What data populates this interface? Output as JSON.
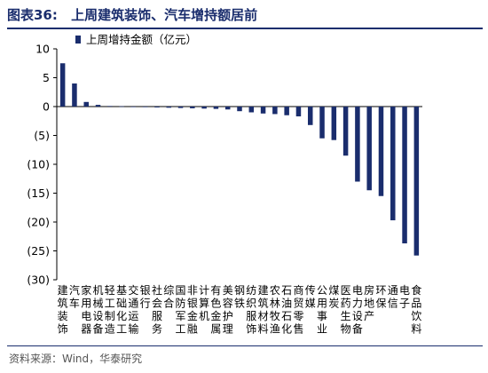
{
  "figure": {
    "label": "图表36:",
    "title": "上周建筑装饰、汽车增持额居前",
    "source": "资料来源：Wind，华泰研究"
  },
  "colors": {
    "bar": "#1a2d6d",
    "title": "#1a2d6d"
  },
  "chart_data": {
    "type": "bar",
    "legend": "上周增持金额（亿元）",
    "legend_position": "top-left",
    "grid": false,
    "ylim": [
      -30,
      10
    ],
    "yticks": [
      10,
      5,
      0,
      -5,
      -10,
      -15,
      -20,
      -25,
      -30
    ],
    "ytick_labels": [
      "10",
      "5",
      "0",
      "(5)",
      "(10)",
      "(15)",
      "(20)",
      "(25)",
      "(30)"
    ],
    "categories": [
      "建筑装饰",
      "汽车",
      "家用电器",
      "机械设备",
      "轻工制造",
      "基础化工",
      "交通运输",
      "银行",
      "社会服务",
      "综合",
      "国防军工",
      "非银金融",
      "计算机",
      "有色金属",
      "美容护理",
      "钢铁",
      "纺织服饰",
      "建筑材料",
      "农林牧渔",
      "石油石化",
      "商贸零售",
      "传媒",
      "公用事业",
      "煤炭",
      "医药生物",
      "电力设备",
      "房地产",
      "环保",
      "通信",
      "电子",
      "食品饮料"
    ],
    "values": [
      7.5,
      4.0,
      0.8,
      0.3,
      0.1,
      0.05,
      -0.05,
      -0.1,
      -0.15,
      -0.2,
      -0.25,
      -0.3,
      -0.35,
      -0.4,
      -0.5,
      -0.8,
      -1.0,
      -1.2,
      -1.3,
      -1.5,
      -1.7,
      -3.2,
      -5.5,
      -5.8,
      -8.5,
      -13.0,
      -14.5,
      -15.5,
      -19.7,
      -23.7,
      -25.8
    ]
  }
}
